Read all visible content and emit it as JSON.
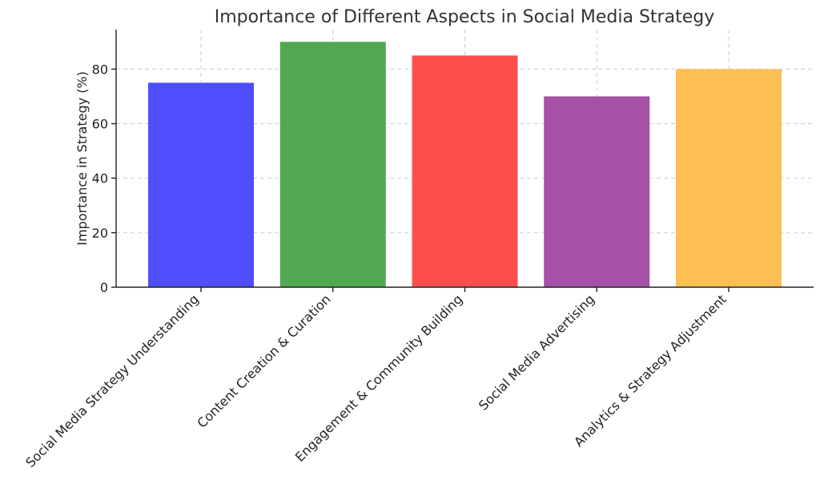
{
  "chart_data": {
    "type": "bar",
    "title": "Importance of Different Aspects in Social Media Strategy",
    "xlabel": "",
    "ylabel": "Importance in Strategy (%)",
    "categories": [
      "Social Media Strategy Understanding",
      "Content Creation & Curation",
      "Engagement & Community Building",
      "Social Media Advertising",
      "Analytics & Strategy Adjustment"
    ],
    "values": [
      75,
      90,
      85,
      70,
      80
    ],
    "colors": [
      "#4a4afd",
      "#4ea64e",
      "#fe4a4a",
      "#a24ea4",
      "#fdbe4e"
    ],
    "ylim": [
      0,
      94.5
    ],
    "yticks": [
      "0",
      "20",
      "40",
      "60",
      "80"
    ],
    "grid": true
  }
}
